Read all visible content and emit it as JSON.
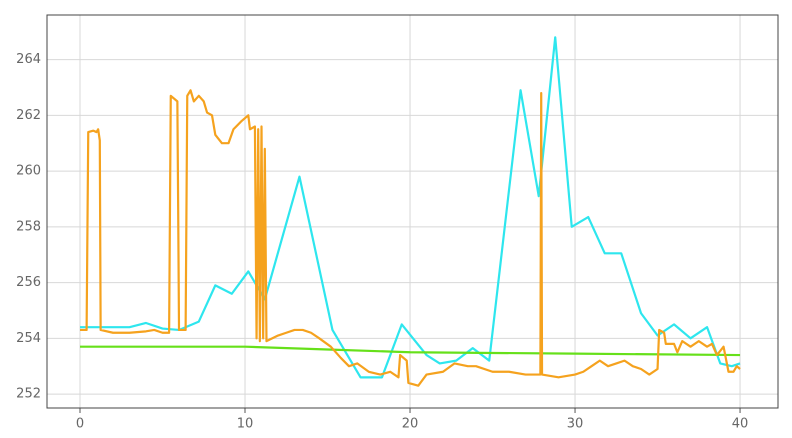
{
  "chart_data": {
    "type": "line",
    "xlim": [
      -2,
      42.3
    ],
    "ylim": [
      251.5,
      265.6
    ],
    "xticks": [
      0,
      10,
      20,
      30,
      40
    ],
    "yticks": [
      252,
      254,
      256,
      258,
      260,
      262,
      264
    ],
    "grid": true,
    "series": [
      {
        "color": "#2ee6ee",
        "x": [
          0,
          3,
          4,
          5,
          6,
          7.2,
          8.2,
          9.2,
          10.2,
          11.2,
          13.3,
          15.3,
          17,
          18.3,
          19.5,
          21,
          21.8,
          22.8,
          23.8,
          24.8,
          26.7,
          27.8,
          28.8,
          29.8,
          30.8,
          31.8,
          32.8,
          34,
          35,
          36,
          37,
          38,
          38.8,
          39.5,
          40
        ],
        "values": [
          254.4,
          254.4,
          254.55,
          254.35,
          254.3,
          254.6,
          255.9,
          255.6,
          256.4,
          255.4,
          259.8,
          254.3,
          252.6,
          252.6,
          254.5,
          253.4,
          253.1,
          253.2,
          253.65,
          253.2,
          262.9,
          259.1,
          264.8,
          258,
          258.35,
          257.05,
          257.05,
          254.9,
          254.1,
          254.5,
          254,
          254.4,
          253.1,
          253.0,
          253.1
        ]
      },
      {
        "color": "#66e01a",
        "x": [
          0,
          10,
          15,
          20,
          30,
          40
        ],
        "values": [
          253.7,
          253.7,
          253.6,
          253.5,
          253.45,
          253.4
        ]
      },
      {
        "color": "#f5a21e",
        "x": [
          0,
          0.4,
          0.5,
          0.8,
          1.0,
          1.1,
          1.2,
          1.25,
          2,
          3,
          4,
          4.5,
          5,
          5.4,
          5.5,
          5.9,
          5.95,
          6.0,
          6.4,
          6.5,
          6.7,
          6.9,
          7.2,
          7.5,
          7.7,
          8.0,
          8.2,
          8.6,
          9.0,
          9.3,
          9.8,
          10.2,
          10.3,
          10.6,
          10.7,
          10.8,
          10.9,
          11.0,
          11.1,
          11.2,
          11.3,
          12,
          12.5,
          13,
          13.5,
          14,
          14.5,
          15.2,
          15.8,
          16.3,
          16.8,
          17.5,
          18.2,
          18.8,
          19.3,
          19.4,
          19.8,
          19.9,
          20.5,
          21,
          22,
          22.7,
          23.5,
          24,
          25,
          26,
          27,
          27.9,
          27.95,
          28.0,
          29,
          30,
          30.5,
          31,
          31.5,
          32,
          32.5,
          33,
          33.5,
          34,
          34.5,
          35,
          35.1,
          35.4,
          35.5,
          36,
          36.2,
          36.5,
          37,
          37.5,
          38,
          38.3,
          38.6,
          39,
          39.3,
          39.6,
          39.8,
          40
        ],
        "values": [
          254.3,
          254.3,
          261.4,
          261.45,
          261.4,
          261.5,
          261.1,
          254.3,
          254.2,
          254.2,
          254.25,
          254.3,
          254.2,
          254.2,
          262.7,
          262.5,
          258.6,
          254.3,
          254.3,
          262.7,
          262.9,
          262.5,
          262.7,
          262.5,
          262.1,
          262,
          261.3,
          261,
          261,
          261.5,
          261.8,
          262,
          261.5,
          261.6,
          254,
          261.5,
          253.9,
          261.6,
          254,
          260.8,
          253.9,
          254.1,
          254.2,
          254.3,
          254.3,
          254.2,
          254,
          253.7,
          253.3,
          253.0,
          253.1,
          252.8,
          252.7,
          252.8,
          252.6,
          253.4,
          253.2,
          252.4,
          252.3,
          252.7,
          252.8,
          253.1,
          253.0,
          253.0,
          252.8,
          252.8,
          252.7,
          252.7,
          262.8,
          252.7,
          252.6,
          252.7,
          252.8,
          253.0,
          253.2,
          253.0,
          253.1,
          253.2,
          253.0,
          252.9,
          252.7,
          252.9,
          254.3,
          254.2,
          253.8,
          253.8,
          253.5,
          253.9,
          253.7,
          253.9,
          253.7,
          253.8,
          253.4,
          253.7,
          252.8,
          252.8,
          253,
          252.9
        ]
      }
    ]
  }
}
